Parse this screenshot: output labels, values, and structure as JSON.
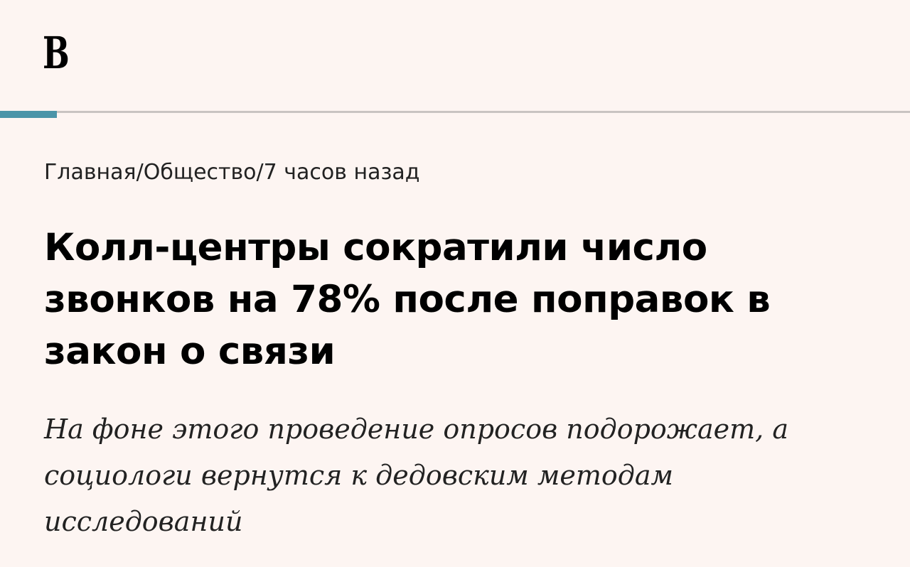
{
  "header": {
    "logo": "В",
    "accent_color": "#4a94a8"
  },
  "breadcrumb": [
    "Главная",
    "Общество",
    "7 часов назад"
  ],
  "breadcrumb_separator": "/",
  "article": {
    "title": "Колл-центры сократили число звонков на 78% после поправок в закон о связи",
    "subtitle": "На фоне этого проведение опросов подорожает, а социологи вернутся к дедовским методам исследований"
  }
}
